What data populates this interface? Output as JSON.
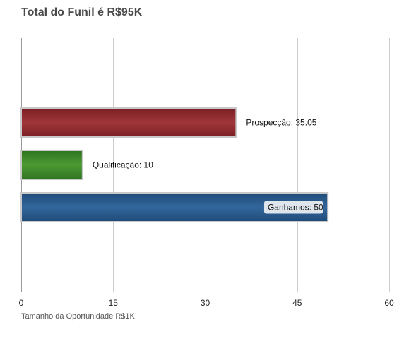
{
  "chart_data": {
    "type": "bar",
    "orientation": "horizontal",
    "title": "Total do Funil é R$95K",
    "xlabel": "Tamanho da Oportunidade R$1K",
    "ylabel": "",
    "xlim": [
      0,
      60
    ],
    "ticks": [
      0,
      15,
      30,
      45,
      60
    ],
    "grid": true,
    "categories": [
      "Prospecção",
      "Qualificação",
      "Ganhamos"
    ],
    "values": [
      35.05,
      10,
      50
    ],
    "labels": [
      "Prospecção: 35.05",
      "Qualificação: 10",
      "Ganhamos: 50"
    ],
    "colors": [
      "#8e2a2f",
      "#3f8a2a",
      "#2a5a8e"
    ]
  }
}
